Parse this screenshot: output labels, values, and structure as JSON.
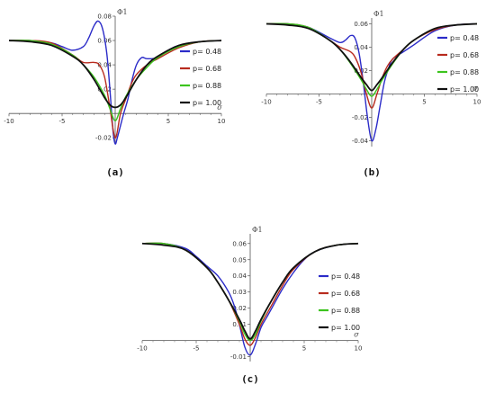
{
  "colors": {
    "axis": "#555555"
  },
  "chart_data": [
    {
      "type": "line",
      "panel_label": "(a)",
      "xlabel": "σ",
      "ylabel": "Φ1",
      "xlim": [
        -10,
        10
      ],
      "ylim": [
        -0.025,
        0.08
      ],
      "xticks": [
        -10,
        -5,
        5,
        10
      ],
      "yticks": [
        -0.02,
        0.02,
        0.04,
        0.06,
        0.08
      ],
      "legend_position": "right",
      "series": [
        {
          "name": "p= 0.48",
          "color": "#2b2bc8",
          "x": [
            -10,
            -8,
            -6,
            -5,
            -4,
            -3,
            -2.5,
            -2,
            -1.6,
            -1.2,
            -0.8,
            -0.5,
            -0.2,
            0,
            0.2,
            0.5,
            0.8,
            1.2,
            1.6,
            2,
            2.5,
            3,
            4,
            5,
            6,
            8,
            10
          ],
          "y": [
            0.06,
            0.06,
            0.058,
            0.055,
            0.052,
            0.055,
            0.062,
            0.072,
            0.076,
            0.07,
            0.05,
            0.02,
            -0.015,
            -0.025,
            -0.02,
            -0.01,
            0.0,
            0.012,
            0.028,
            0.04,
            0.046,
            0.045,
            0.046,
            0.052,
            0.056,
            0.059,
            0.06
          ]
        },
        {
          "name": "p= 0.68",
          "color": "#b82b1e",
          "x": [
            -10,
            -8,
            -6,
            -4,
            -3,
            -2,
            -1.5,
            -1,
            -0.5,
            0,
            0.5,
            1,
            1.5,
            2,
            3,
            4,
            6,
            8,
            10
          ],
          "y": [
            0.06,
            0.06,
            0.058,
            0.048,
            0.042,
            0.042,
            0.04,
            0.03,
            0.005,
            -0.02,
            0.0,
            0.012,
            0.024,
            0.032,
            0.04,
            0.045,
            0.054,
            0.059,
            0.06
          ]
        },
        {
          "name": "p= 0.88",
          "color": "#3cc41e",
          "x": [
            -10,
            -8,
            -6,
            -4,
            -3,
            -2,
            -1,
            -0.5,
            0,
            0.5,
            1,
            2,
            3,
            4,
            6,
            8,
            10
          ],
          "y": [
            0.06,
            0.06,
            0.057,
            0.048,
            0.04,
            0.03,
            0.015,
            0.004,
            -0.006,
            0.004,
            0.014,
            0.028,
            0.038,
            0.046,
            0.055,
            0.059,
            0.06
          ]
        },
        {
          "name": "p= 1.00",
          "color": "#111111",
          "x": [
            -10,
            -8,
            -6,
            -4,
            -3,
            -2,
            -1,
            -0.5,
            0,
            0.5,
            1,
            2,
            3,
            4,
            6,
            8,
            10
          ],
          "y": [
            0.06,
            0.059,
            0.056,
            0.047,
            0.04,
            0.028,
            0.013,
            0.007,
            0.005,
            0.007,
            0.013,
            0.028,
            0.04,
            0.047,
            0.056,
            0.059,
            0.06
          ]
        }
      ]
    },
    {
      "type": "line",
      "panel_label": "(b)",
      "xlabel": "σ",
      "ylabel": "Φ1",
      "xlim": [
        -10,
        10
      ],
      "ylim": [
        -0.045,
        0.065
      ],
      "xticks": [
        -10,
        -5,
        5,
        10
      ],
      "yticks": [
        -0.04,
        -0.02,
        0.02,
        0.04,
        0.06
      ],
      "legend_position": "right",
      "series": [
        {
          "name": "p= 0.48",
          "color": "#2b2bc8",
          "x": [
            -10,
            -8,
            -6,
            -4,
            -3,
            -2.5,
            -2,
            -1.6,
            -1.2,
            -0.8,
            -0.4,
            0,
            0.4,
            0.8,
            1.2,
            1.6,
            2,
            3,
            4,
            6,
            8,
            10
          ],
          "y": [
            0.06,
            0.06,
            0.057,
            0.048,
            0.044,
            0.046,
            0.05,
            0.048,
            0.035,
            0.01,
            -0.02,
            -0.04,
            -0.03,
            -0.01,
            0.01,
            0.022,
            0.03,
            0.036,
            0.042,
            0.054,
            0.059,
            0.06
          ]
        },
        {
          "name": "p= 0.68",
          "color": "#b82b1e",
          "x": [
            -10,
            -8,
            -6,
            -4,
            -3,
            -2,
            -1.5,
            -1,
            -0.5,
            0,
            0.5,
            1,
            1.5,
            2,
            3,
            4,
            6,
            8,
            10
          ],
          "y": [
            0.06,
            0.06,
            0.057,
            0.046,
            0.04,
            0.036,
            0.03,
            0.018,
            0.0,
            -0.012,
            0.0,
            0.014,
            0.024,
            0.03,
            0.038,
            0.046,
            0.055,
            0.059,
            0.06
          ]
        },
        {
          "name": "p= 0.88",
          "color": "#3cc41e",
          "x": [
            -10,
            -8,
            -6,
            -4,
            -3,
            -2,
            -1,
            -0.5,
            0,
            0.5,
            1,
            2,
            3,
            4,
            6,
            8,
            10
          ],
          "y": [
            0.06,
            0.06,
            0.057,
            0.046,
            0.038,
            0.026,
            0.012,
            0.004,
            -0.002,
            0.004,
            0.012,
            0.026,
            0.038,
            0.046,
            0.056,
            0.059,
            0.06
          ]
        },
        {
          "name": "p= 1.00",
          "color": "#111111",
          "x": [
            -10,
            -8,
            -6,
            -4,
            -3,
            -2,
            -1,
            -0.5,
            0,
            0.5,
            1,
            2,
            3,
            4,
            6,
            8,
            10
          ],
          "y": [
            0.06,
            0.059,
            0.056,
            0.046,
            0.038,
            0.027,
            0.014,
            0.008,
            0.003,
            0.008,
            0.014,
            0.027,
            0.038,
            0.046,
            0.056,
            0.059,
            0.06
          ]
        }
      ]
    },
    {
      "type": "line",
      "panel_label": "(c)",
      "xlabel": "σ",
      "ylabel": "Φ1",
      "xlim": [
        -10,
        10
      ],
      "ylim": [
        -0.013,
        0.066
      ],
      "xticks": [
        -10,
        -5,
        5,
        10
      ],
      "yticks": [
        -0.01,
        0.01,
        0.02,
        0.03,
        0.04,
        0.05,
        0.06
      ],
      "legend_position": "right",
      "series": [
        {
          "name": "p= 0.48",
          "color": "#2b2bc8",
          "x": [
            -10,
            -8,
            -6,
            -5,
            -4,
            -3,
            -2,
            -1.5,
            -1,
            -0.5,
            0,
            0.5,
            1,
            1.5,
            2,
            3,
            4,
            5,
            6,
            8,
            10
          ],
          "y": [
            0.06,
            0.06,
            0.057,
            0.052,
            0.046,
            0.04,
            0.03,
            0.022,
            0.01,
            -0.004,
            -0.009,
            -0.002,
            0.008,
            0.014,
            0.02,
            0.032,
            0.042,
            0.05,
            0.055,
            0.059,
            0.06
          ]
        },
        {
          "name": "p= 0.68",
          "color": "#b82b1e",
          "x": [
            -10,
            -8,
            -6,
            -4,
            -3,
            -2,
            -1,
            -0.5,
            0,
            0.5,
            1,
            2,
            3,
            4,
            6,
            8,
            10
          ],
          "y": [
            0.06,
            0.06,
            0.056,
            0.045,
            0.036,
            0.025,
            0.01,
            0.001,
            -0.003,
            0.002,
            0.01,
            0.022,
            0.034,
            0.044,
            0.055,
            0.059,
            0.06
          ]
        },
        {
          "name": "p= 0.88",
          "color": "#3cc41e",
          "x": [
            -10,
            -8,
            -6,
            -4,
            -3,
            -2,
            -1,
            -0.5,
            0,
            0.5,
            1,
            2,
            3,
            4,
            6,
            8,
            10
          ],
          "y": [
            0.06,
            0.06,
            0.056,
            0.045,
            0.036,
            0.025,
            0.012,
            0.004,
            0.0,
            0.004,
            0.012,
            0.025,
            0.036,
            0.045,
            0.055,
            0.059,
            0.06
          ]
        },
        {
          "name": "p= 1.00",
          "color": "#111111",
          "x": [
            -10,
            -8,
            -6,
            -4,
            -3,
            -2,
            -1,
            -0.5,
            0,
            0.5,
            1,
            2,
            3,
            4,
            6,
            8,
            10
          ],
          "y": [
            0.06,
            0.059,
            0.056,
            0.045,
            0.036,
            0.025,
            0.013,
            0.006,
            0.001,
            0.006,
            0.013,
            0.025,
            0.036,
            0.045,
            0.055,
            0.059,
            0.06
          ]
        }
      ]
    }
  ]
}
